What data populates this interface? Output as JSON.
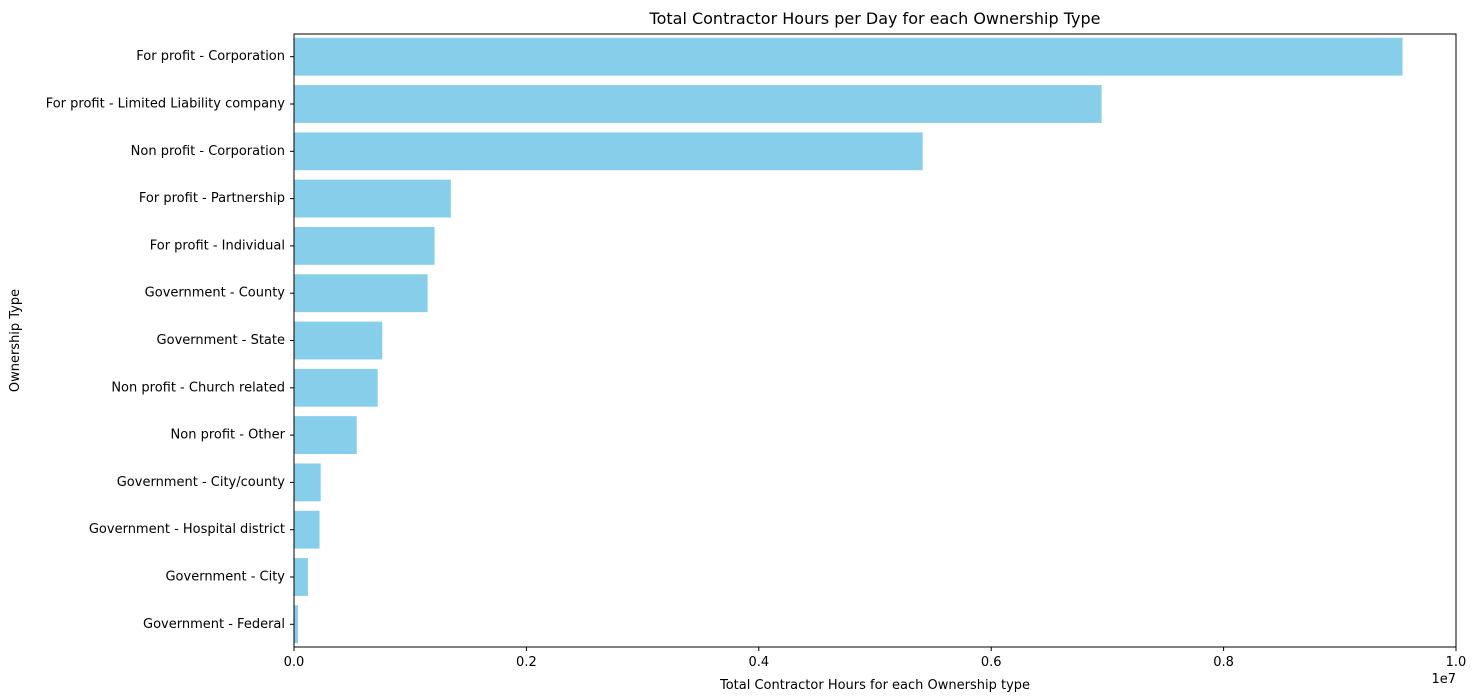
{
  "chart_data": {
    "type": "bar",
    "orientation": "horizontal",
    "title": "Total Contractor Hours per Day for each Ownership Type",
    "xlabel": "Total Contractor Hours for each Ownership type",
    "ylabel": "Ownership Type",
    "x_offset_text": "1e7",
    "categories": [
      "For profit - Corporation",
      "For profit - Limited Liability company",
      "Non profit - Corporation",
      "For profit - Partnership",
      "For profit - Individual",
      "Government - County",
      "Government - State",
      "Non profit - Church related",
      "Non profit - Other",
      "Government - City/county",
      "Government - Hospital district",
      "Government - City",
      "Government - Federal"
    ],
    "values": [
      9540000,
      6950000,
      5410000,
      1350000,
      1210000,
      1150000,
      760000,
      720000,
      540000,
      230000,
      220000,
      120000,
      35000
    ],
    "xlim": [
      0,
      10000000
    ],
    "xticks": [
      0,
      2000000,
      4000000,
      6000000,
      8000000,
      10000000
    ],
    "xtick_labels": [
      "0.0",
      "0.2",
      "0.4",
      "0.6",
      "0.8",
      "1.0"
    ],
    "bar_color": "#87CEEB",
    "grid": false,
    "legend": "none"
  }
}
